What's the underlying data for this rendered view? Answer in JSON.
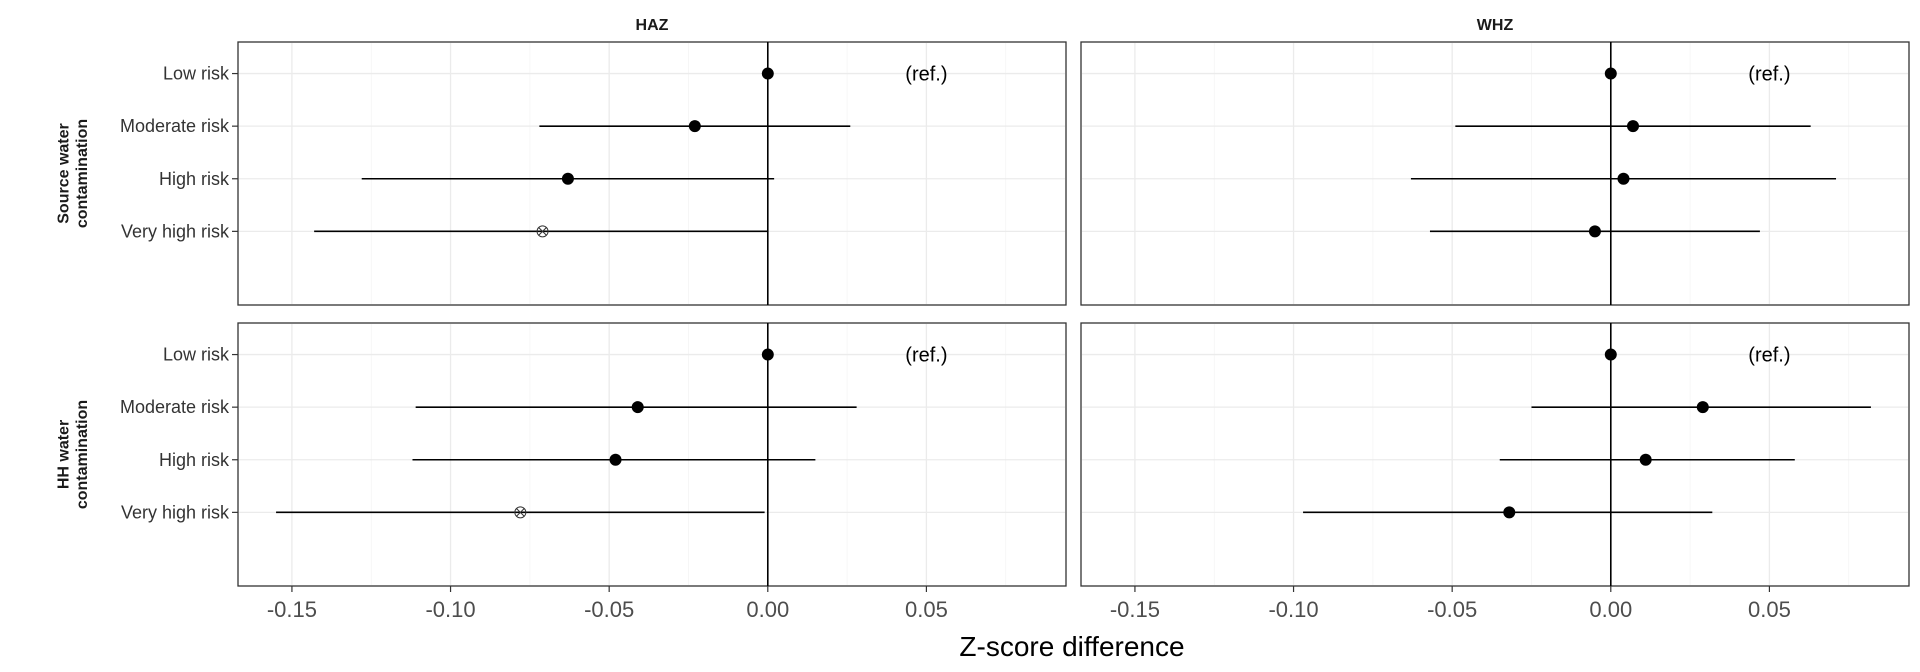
{
  "chart_data": {
    "type": "scatter",
    "subtype": "forest-plot-point-range",
    "x_axis_title": "Z-score difference",
    "xlim": [
      -0.167,
      0.094
    ],
    "x_ticks": [
      -0.15,
      -0.1,
      -0.05,
      0.0,
      0.05
    ],
    "x_tick_labels": [
      "-0.15",
      "-0.10",
      "-0.05",
      "0.00",
      "0.05"
    ],
    "categories": [
      "Low risk",
      "Moderate risk",
      "High risk",
      "Very high risk"
    ],
    "columns": [
      "HAZ",
      "WHZ"
    ],
    "row_labels": [
      [
        "Source water",
        "contamination"
      ],
      [
        "HH water",
        "contamination"
      ]
    ],
    "reference_label": "(ref.)",
    "reference_label_x": 0.05,
    "reference_line_x": 0,
    "grid": true,
    "panels": [
      {
        "column": "HAZ",
        "row": "Source water contamination",
        "points": [
          {
            "category": "Low risk",
            "est": 0.0,
            "lo": null,
            "hi": null,
            "marker": "filled",
            "reference": true
          },
          {
            "category": "Moderate risk",
            "est": -0.023,
            "lo": -0.072,
            "hi": 0.026,
            "marker": "filled"
          },
          {
            "category": "High risk",
            "est": -0.063,
            "lo": -0.128,
            "hi": 0.002,
            "marker": "filled"
          },
          {
            "category": "Very high risk",
            "est": -0.071,
            "lo": -0.143,
            "hi": 0.0,
            "marker": "open-crossed"
          }
        ]
      },
      {
        "column": "WHZ",
        "row": "Source water contamination",
        "points": [
          {
            "category": "Low risk",
            "est": 0.0,
            "lo": null,
            "hi": null,
            "marker": "filled",
            "reference": true
          },
          {
            "category": "Moderate risk",
            "est": 0.007,
            "lo": -0.049,
            "hi": 0.063,
            "marker": "filled"
          },
          {
            "category": "High risk",
            "est": 0.004,
            "lo": -0.063,
            "hi": 0.071,
            "marker": "filled"
          },
          {
            "category": "Very high risk",
            "est": -0.005,
            "lo": -0.057,
            "hi": 0.047,
            "marker": "filled"
          }
        ]
      },
      {
        "column": "HAZ",
        "row": "HH water contamination",
        "points": [
          {
            "category": "Low risk",
            "est": 0.0,
            "lo": null,
            "hi": null,
            "marker": "filled",
            "reference": true
          },
          {
            "category": "Moderate risk",
            "est": -0.041,
            "lo": -0.111,
            "hi": 0.028,
            "marker": "filled"
          },
          {
            "category": "High risk",
            "est": -0.048,
            "lo": -0.112,
            "hi": 0.015,
            "marker": "filled"
          },
          {
            "category": "Very high risk",
            "est": -0.078,
            "lo": -0.155,
            "hi": -0.001,
            "marker": "open-crossed"
          }
        ]
      },
      {
        "column": "WHZ",
        "row": "HH water contamination",
        "points": [
          {
            "category": "Low risk",
            "est": 0.0,
            "lo": null,
            "hi": null,
            "marker": "filled",
            "reference": true
          },
          {
            "category": "Moderate risk",
            "est": 0.029,
            "lo": -0.025,
            "hi": 0.082,
            "marker": "filled"
          },
          {
            "category": "High risk",
            "est": 0.011,
            "lo": -0.035,
            "hi": 0.058,
            "marker": "filled"
          },
          {
            "category": "Very high risk",
            "est": -0.032,
            "lo": -0.097,
            "hi": 0.032,
            "marker": "filled"
          }
        ]
      }
    ]
  }
}
